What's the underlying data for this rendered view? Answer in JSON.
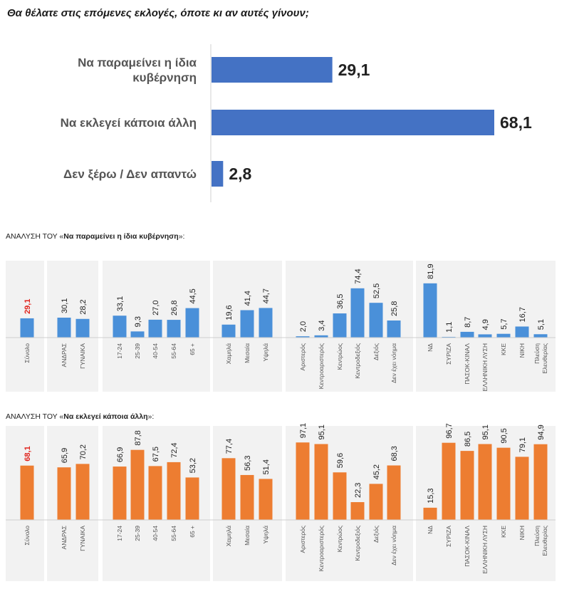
{
  "question": "Θα θέλατε στις επόμενες εκλογές, όποτε κι αν αυτές γίνουν;",
  "chart_data": [
    {
      "type": "bar",
      "orientation": "horizontal",
      "title": "Θα θέλατε στις επόμενες εκλογές, όποτε κι αν αυτές γίνουν;",
      "categories": [
        "Να παραμείνει η ίδια κυβέρνηση",
        "Να εκλεγεί κάποια άλλη",
        "Δεν ξέρω / Δεν απαντώ"
      ],
      "values": [
        29.1,
        68.1,
        2.8
      ],
      "value_labels": [
        "29,1",
        "68,1",
        "2,8"
      ],
      "color": "#4472c4",
      "xlim": [
        0,
        70
      ]
    },
    {
      "type": "bar",
      "title_prefix": "ΑΝΑΛΥΣΗ ΤΟΥ «",
      "title_bold": "Να παραμείνει η ίδια κυβέρνηση",
      "title_suffix": "»:",
      "color": "#4a90d9",
      "highlight_color": "#e0231c",
      "ylim": [
        0,
        100
      ],
      "groups": [
        {
          "categories": [
            "Σύνολο"
          ],
          "values": [
            29.1
          ],
          "labels": [
            "29,1"
          ]
        },
        {
          "categories": [
            "ΑΝΔΡΑΣ",
            "ΓΥΝΑΙΚΑ"
          ],
          "values": [
            30.1,
            28.2
          ],
          "labels": [
            "30,1",
            "28,2"
          ]
        },
        {
          "categories": [
            "17-24",
            "25-39",
            "40-54",
            "55-64",
            "65 +"
          ],
          "values": [
            33.1,
            9.3,
            27.0,
            26.8,
            44.5
          ],
          "labels": [
            "33,1",
            "9,3",
            "27,0",
            "26,8",
            "44,5"
          ]
        },
        {
          "categories": [
            "Χαμηλά",
            "Μεσαία",
            "Υψηλά"
          ],
          "values": [
            19.6,
            41.4,
            44.7
          ],
          "labels": [
            "19,6",
            "41,4",
            "44,7"
          ]
        },
        {
          "categories": [
            "Αριστερός",
            "Κεντροαριστερός",
            "Κεντρώος",
            "Κεντροδεξιός",
            "Δεξιός",
            "Δεν έχει νόημα"
          ],
          "values": [
            2.0,
            3.4,
            36.5,
            74.4,
            52.5,
            25.8
          ],
          "labels": [
            "2,0",
            "3,4",
            "36,5",
            "74,4",
            "52,5",
            "25,8"
          ]
        },
        {
          "categories": [
            "ΝΔ",
            "ΣΥΡΙΖΑ",
            "ΠΑΣΟΚ-ΚΙΝΑΛ",
            "ΕΛΛΗΝΙΚΗ ΛΥΣΗ",
            "ΚΚΕ",
            "ΝΙΚΗ",
            "Πλεύση Ελευθερίας"
          ],
          "values": [
            81.9,
            1.1,
            8.7,
            4.9,
            5.7,
            16.7,
            5.1
          ],
          "labels": [
            "81,9",
            "1,1",
            "8,7",
            "4,9",
            "5,7",
            "16,7",
            "5,1"
          ]
        }
      ]
    },
    {
      "type": "bar",
      "title_prefix": "ΑΝΑΛΥΣΗ ΤΟΥ «",
      "title_bold": "Να εκλεγεί κάποια άλλη",
      "title_suffix": "»:",
      "color": "#ed7d31",
      "highlight_color": "#e0231c",
      "ylim": [
        0,
        100
      ],
      "groups": [
        {
          "categories": [
            "Σύνολο"
          ],
          "values": [
            68.1
          ],
          "labels": [
            "68,1"
          ]
        },
        {
          "categories": [
            "ΑΝΔΡΑΣ",
            "ΓΥΝΑΙΚΑ"
          ],
          "values": [
            65.9,
            70.2
          ],
          "labels": [
            "65,9",
            "70,2"
          ]
        },
        {
          "categories": [
            "17-24",
            "25-39",
            "40-54",
            "55-64",
            "65 +"
          ],
          "values": [
            66.9,
            87.8,
            67.5,
            72.4,
            53.2
          ],
          "labels": [
            "66,9",
            "87,8",
            "67,5",
            "72,4",
            "53,2"
          ]
        },
        {
          "categories": [
            "Χαμηλά",
            "Μεσαία",
            "Υψηλά"
          ],
          "values": [
            77.4,
            56.3,
            51.4
          ],
          "labels": [
            "77,4",
            "56,3",
            "51,4"
          ]
        },
        {
          "categories": [
            "Αριστερός",
            "Κεντροαριστερός",
            "Κεντρώος",
            "Κεντροδεξιός",
            "Δεξιός",
            "Δεν έχει νόημα"
          ],
          "values": [
            97.1,
            95.1,
            59.6,
            22.3,
            45.2,
            68.3
          ],
          "labels": [
            "97,1",
            "95,1",
            "59,6",
            "22,3",
            "45,2",
            "68,3"
          ]
        },
        {
          "categories": [
            "ΝΔ",
            "ΣΥΡΙΖΑ",
            "ΠΑΣΟΚ-ΚΙΝΑΛ",
            "ΕΛΛΗΝΙΚΗ ΛΥΣΗ",
            "ΚΚΕ",
            "ΝΙΚΗ",
            "Πλεύση Ελευθερίας"
          ],
          "values": [
            15.3,
            96.7,
            86.5,
            95.1,
            90.5,
            79.1,
            94.9
          ],
          "labels": [
            "15,3",
            "96,7",
            "86,5",
            "95,1",
            "90,5",
            "79,1",
            "94,9"
          ]
        }
      ]
    }
  ]
}
